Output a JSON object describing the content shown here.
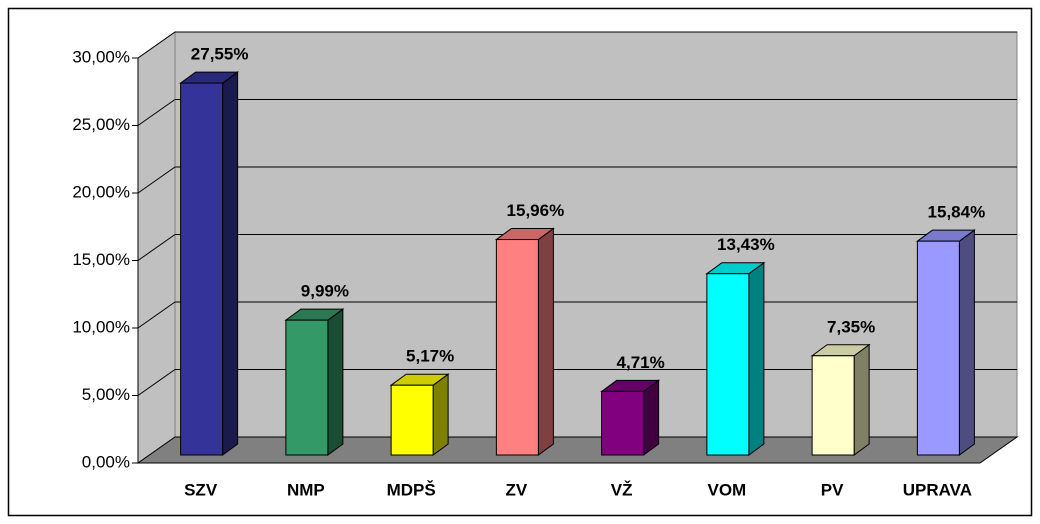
{
  "chart_data": {
    "type": "bar3d",
    "categories": [
      "SZV",
      "NMP",
      "MDPŠ",
      "ZV",
      "VŽ",
      "VOM",
      "PV",
      "UPRAVA"
    ],
    "values": [
      27.55,
      9.99,
      5.17,
      15.96,
      4.71,
      13.43,
      7.35,
      15.84
    ],
    "value_labels": [
      "27,55%",
      "9,99%",
      "5,17%",
      "15,96%",
      "4,71%",
      "13,43%",
      "7,35%",
      "15,84%"
    ],
    "colors": [
      "#333399",
      "#339966",
      "#ffff00",
      "#ff8080",
      "#800080",
      "#00ffff",
      "#ffffcc",
      "#9999ff"
    ],
    "ylim": [
      0,
      30
    ],
    "yticks": [
      {
        "value": 0,
        "label": "0,00%"
      },
      {
        "value": 5,
        "label": "5,00%"
      },
      {
        "value": 10,
        "label": "10,00%"
      },
      {
        "value": 15,
        "label": "15,00%"
      },
      {
        "value": 20,
        "label": "20,00%"
      },
      {
        "value": 25,
        "label": "25,00%"
      },
      {
        "value": 30,
        "label": "30,00%"
      }
    ],
    "grid": true
  }
}
